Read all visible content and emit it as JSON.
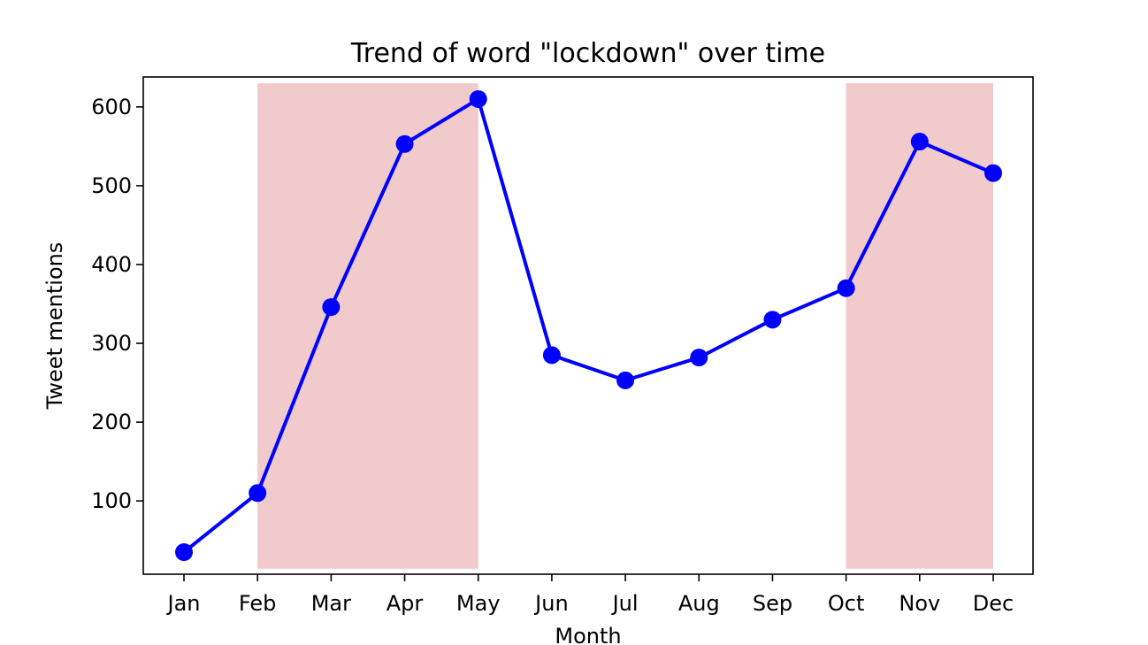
{
  "chart_data": {
    "type": "line",
    "title": "Trend of word \"lockdown\" over time",
    "xlabel": "Month",
    "ylabel": "Tweet mentions",
    "categories": [
      "Jan",
      "Feb",
      "Mar",
      "Apr",
      "May",
      "Jun",
      "Jul",
      "Aug",
      "Sep",
      "Oct",
      "Nov",
      "Dec"
    ],
    "series": [
      {
        "values": [
          35,
          110,
          346,
          553,
          610,
          285,
          253,
          282,
          330,
          370,
          556,
          516
        ],
        "color": "#0000ff"
      }
    ],
    "yticks": [
      100,
      200,
      300,
      400,
      500,
      600
    ],
    "ylim": [
      7,
      638
    ],
    "highlight_ranges": [
      {
        "from": "Feb",
        "to": "May",
        "color": "#d9747a",
        "opacity": 0.38
      },
      {
        "from": "Oct",
        "to": "Dec",
        "color": "#d9747a",
        "opacity": 0.38
      }
    ],
    "grid": false,
    "legend": false
  }
}
